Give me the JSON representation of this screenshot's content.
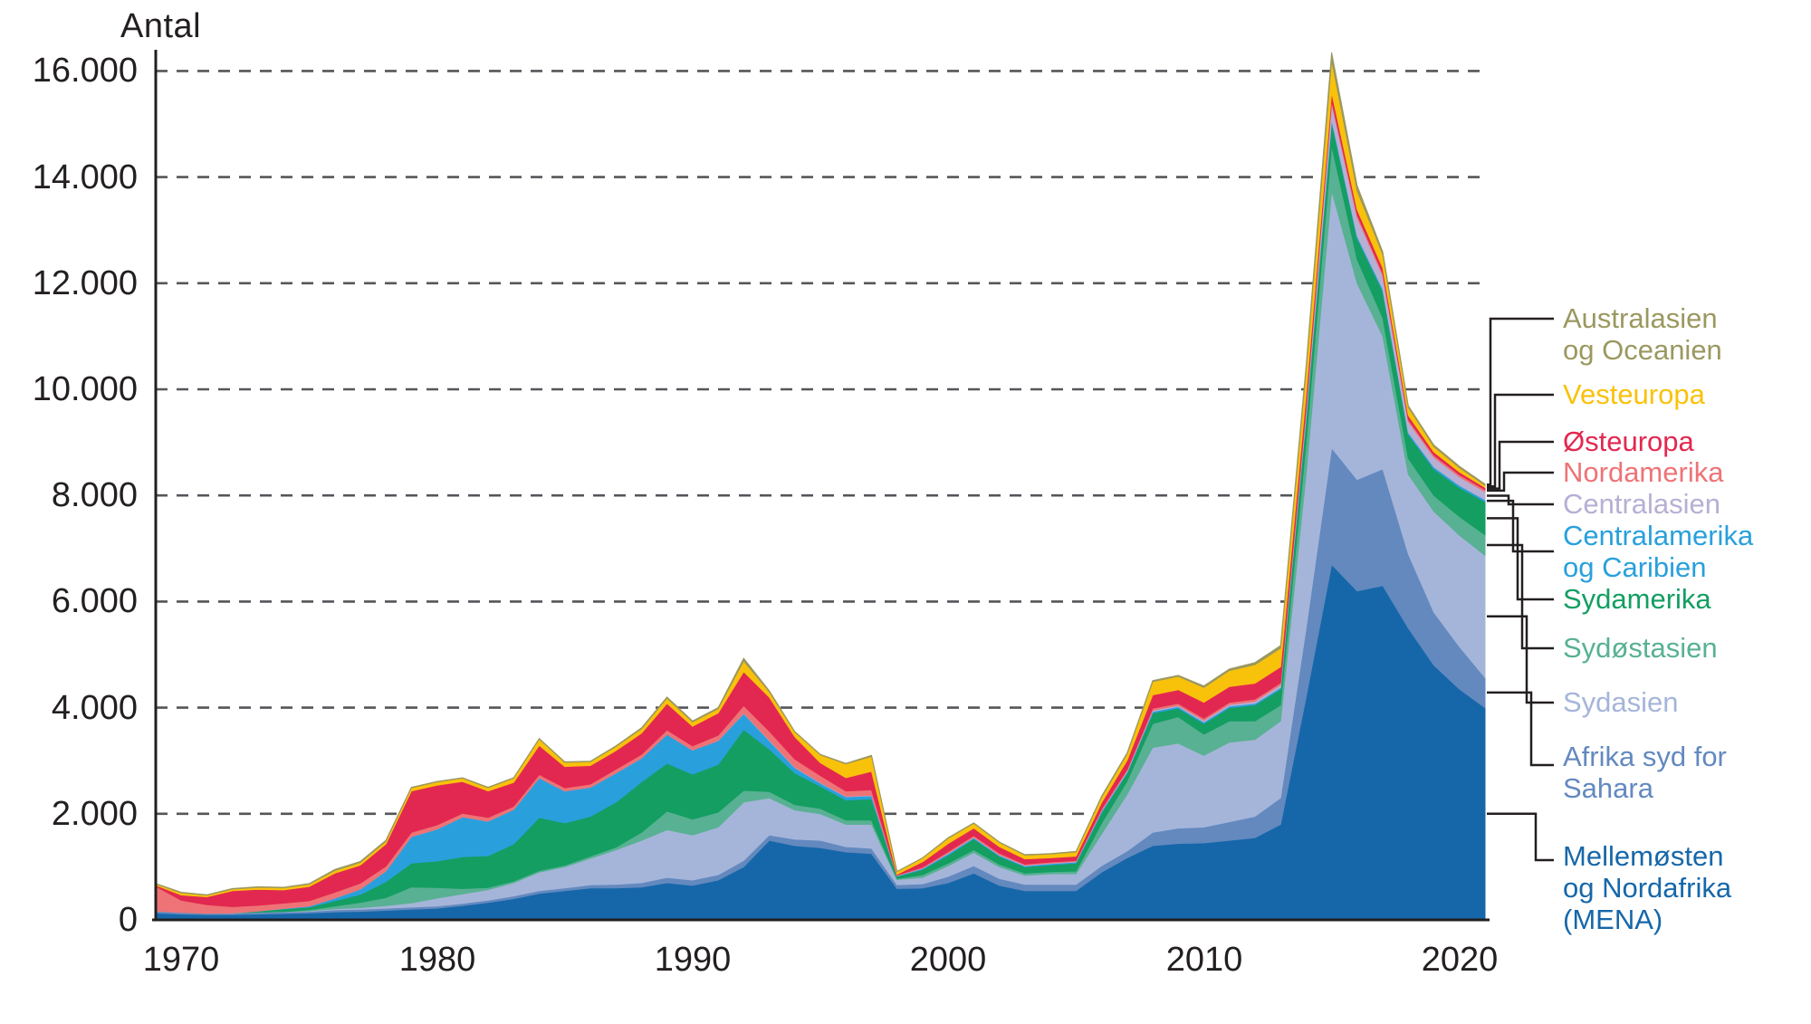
{
  "title": "Antal",
  "axes": {
    "y_title": "Antal",
    "ytick_values": [
      0,
      2000,
      4000,
      6000,
      8000,
      10000,
      12000,
      14000,
      16000
    ],
    "ytick_labels": [
      "0",
      "2.000",
      "4.000",
      "6.000",
      "8.000",
      "10.000",
      "12.000",
      "14.000",
      "16.000"
    ],
    "xtick_labels": [
      "1970",
      "1980",
      "1990",
      "2000",
      "2010",
      "2020"
    ],
    "xtick_years": [
      1970,
      1980,
      1990,
      2000,
      2010,
      2020
    ]
  },
  "chart_data": {
    "type": "area",
    "stacked": true,
    "title": "Antal",
    "xlabel": "",
    "ylabel": "Antal",
    "ylim": [
      0,
      16000
    ],
    "grid": "dashed-horizontal",
    "legend_position": "right",
    "x_range": [
      1969,
      2021
    ],
    "x": [
      1969,
      1970,
      1971,
      1972,
      1973,
      1974,
      1975,
      1976,
      1977,
      1978,
      1979,
      1980,
      1981,
      1982,
      1983,
      1984,
      1985,
      1986,
      1987,
      1988,
      1989,
      1990,
      1991,
      1992,
      1993,
      1994,
      1995,
      1996,
      1997,
      1998,
      1999,
      2000,
      2001,
      2002,
      2003,
      2004,
      2005,
      2006,
      2007,
      2008,
      2009,
      2010,
      2011,
      2012,
      2013,
      2014,
      2015,
      2016,
      2017,
      2018,
      2019,
      2020,
      2021
    ],
    "series": [
      {
        "key": "mena",
        "name": "Mellemøsten og Nordafrika (MENA)",
        "color": "#1667A9",
        "values": [
          130,
          110,
          100,
          100,
          110,
          120,
          130,
          150,
          160,
          180,
          200,
          220,
          270,
          330,
          400,
          500,
          550,
          600,
          600,
          620,
          700,
          650,
          750,
          1000,
          1500,
          1400,
          1360,
          1280,
          1250,
          590,
          600,
          700,
          880,
          650,
          550,
          550,
          550,
          900,
          1170,
          1400,
          1440,
          1450,
          1500,
          1550,
          1800,
          4200,
          6700,
          6200,
          6300,
          5500,
          4800,
          4350,
          4000
        ]
      },
      {
        "key": "afrika",
        "name": "Afrika syd for Sahara",
        "color": "#6389BF",
        "values": [
          35,
          30,
          25,
          25,
          30,
          30,
          30,
          40,
          40,
          40,
          40,
          40,
          40,
          40,
          50,
          50,
          50,
          60,
          70,
          80,
          100,
          100,
          100,
          120,
          100,
          120,
          140,
          100,
          100,
          70,
          80,
          120,
          140,
          130,
          120,
          120,
          120,
          120,
          130,
          250,
          290,
          300,
          350,
          400,
          500,
          1300,
          2200,
          2100,
          2200,
          1400,
          1000,
          800,
          570
        ]
      },
      {
        "key": "sydasien",
        "name": "Sydasien",
        "color": "#A5B5D9",
        "values": [
          0,
          0,
          0,
          5,
          5,
          5,
          10,
          20,
          30,
          50,
          80,
          150,
          180,
          200,
          250,
          350,
          400,
          500,
          650,
          800,
          900,
          850,
          900,
          1100,
          700,
          550,
          500,
          420,
          450,
          100,
          120,
          200,
          250,
          220,
          170,
          200,
          200,
          600,
          1070,
          1600,
          1600,
          1350,
          1500,
          1450,
          1450,
          2900,
          4850,
          3700,
          2500,
          1500,
          1900,
          2100,
          2300
        ]
      },
      {
        "key": "sydostasien",
        "name": "Sydøstasien",
        "color": "#58B192",
        "values": [
          0,
          0,
          0,
          0,
          0,
          0,
          20,
          50,
          100,
          150,
          300,
          200,
          100,
          40,
          30,
          30,
          30,
          40,
          50,
          150,
          350,
          300,
          280,
          220,
          120,
          100,
          100,
          80,
          80,
          20,
          50,
          50,
          50,
          50,
          40,
          40,
          50,
          200,
          250,
          450,
          500,
          400,
          400,
          350,
          300,
          600,
          850,
          450,
          350,
          300,
          300,
          350,
          390
        ]
      },
      {
        "key": "sydamerika",
        "name": "Sydamerika",
        "color": "#149E62",
        "values": [
          0,
          0,
          0,
          0,
          20,
          50,
          50,
          100,
          150,
          300,
          450,
          500,
          600,
          600,
          700,
          1000,
          800,
          750,
          850,
          950,
          900,
          850,
          900,
          1150,
          800,
          600,
          420,
          380,
          400,
          40,
          100,
          150,
          210,
          150,
          120,
          130,
          150,
          200,
          150,
          200,
          160,
          200,
          250,
          300,
          300,
          450,
          450,
          400,
          500,
          450,
          500,
          550,
          620
        ]
      },
      {
        "key": "centralamerika",
        "name": "Centralamerika og Caribien",
        "color": "#29A0DC",
        "values": [
          0,
          0,
          0,
          0,
          0,
          10,
          20,
          50,
          100,
          200,
          500,
          600,
          750,
          650,
          650,
          750,
          600,
          550,
          550,
          450,
          550,
          450,
          450,
          300,
          160,
          100,
          60,
          60,
          60,
          10,
          20,
          30,
          20,
          20,
          20,
          20,
          20,
          30,
          20,
          30,
          30,
          30,
          30,
          30,
          30,
          40,
          50,
          40,
          40,
          40,
          40,
          40,
          40
        ]
      },
      {
        "key": "centralasien",
        "name": "Centralasien",
        "color": "#B7AFD4",
        "values": [
          0,
          0,
          0,
          0,
          0,
          0,
          0,
          0,
          0,
          0,
          0,
          0,
          0,
          0,
          0,
          0,
          0,
          0,
          0,
          0,
          0,
          0,
          0,
          10,
          10,
          10,
          10,
          10,
          10,
          5,
          5,
          10,
          10,
          10,
          10,
          10,
          10,
          10,
          20,
          20,
          20,
          30,
          30,
          40,
          50,
          120,
          300,
          350,
          250,
          200,
          180,
          160,
          150
        ]
      },
      {
        "key": "nordamerika",
        "name": "Nordamerika",
        "color": "#EE7376",
        "values": [
          470,
          230,
          160,
          120,
          110,
          100,
          100,
          110,
          110,
          90,
          80,
          80,
          70,
          70,
          60,
          60,
          60,
          60,
          70,
          70,
          80,
          80,
          100,
          140,
          170,
          150,
          130,
          100,
          100,
          10,
          20,
          30,
          30,
          30,
          20,
          20,
          20,
          30,
          30,
          40,
          40,
          40,
          40,
          40,
          40,
          50,
          50,
          50,
          50,
          40,
          40,
          40,
          40
        ]
      },
      {
        "key": "osteuropa",
        "name": "Østeuropa",
        "color": "#E22850",
        "values": [
          20,
          100,
          150,
          300,
          300,
          250,
          270,
          360,
          340,
          420,
          780,
          750,
          600,
          500,
          450,
          550,
          400,
          350,
          350,
          400,
          500,
          370,
          420,
          640,
          640,
          420,
          240,
          250,
          350,
          15,
          100,
          150,
          140,
          120,
          100,
          80,
          80,
          120,
          170,
          250,
          260,
          300,
          300,
          300,
          300,
          250,
          150,
          100,
          100,
          80,
          60,
          50,
          40
        ]
      },
      {
        "key": "vesteuropa",
        "name": "Vesteuropa",
        "color": "#F9C20A",
        "values": [
          20,
          40,
          30,
          30,
          40,
          40,
          40,
          50,
          50,
          50,
          60,
          60,
          60,
          60,
          80,
          120,
          80,
          70,
          80,
          80,
          100,
          80,
          80,
          200,
          100,
          90,
          150,
          260,
          280,
          50,
          70,
          100,
          90,
          80,
          70,
          70,
          80,
          100,
          120,
          250,
          250,
          280,
          300,
          350,
          350,
          450,
          600,
          350,
          250,
          150,
          100,
          80,
          40
        ]
      },
      {
        "key": "australasien",
        "name": "Australasien og Oceanien",
        "color": "#9B9860",
        "values": [
          10,
          10,
          10,
          10,
          10,
          10,
          15,
          20,
          20,
          20,
          10,
          10,
          10,
          10,
          10,
          10,
          10,
          10,
          10,
          20,
          20,
          20,
          20,
          50,
          20,
          10,
          10,
          10,
          20,
          5,
          5,
          10,
          10,
          10,
          10,
          10,
          10,
          20,
          20,
          20,
          20,
          30,
          30,
          40,
          50,
          80,
          150,
          100,
          50,
          30,
          30,
          30,
          25
        ]
      }
    ]
  },
  "legend": {
    "items": [
      {
        "series": "australasien",
        "label": "Australasien\nog Oceanien",
        "color": "#9B9860"
      },
      {
        "series": "vesteuropa",
        "label": "Vesteuropa",
        "color": "#F9C20A"
      },
      {
        "series": "osteuropa",
        "label": "Østeuropa",
        "color": "#E22850"
      },
      {
        "series": "nordamerika",
        "label": "Nordamerika",
        "color": "#EE7376"
      },
      {
        "series": "centralasien",
        "label": "Centralasien",
        "color": "#B7AFD4"
      },
      {
        "series": "centralamerika",
        "label": "Centralamerika\nog Caribien",
        "color": "#29A0DC"
      },
      {
        "series": "sydamerika",
        "label": "Sydamerika",
        "color": "#149E62"
      },
      {
        "series": "sydostasien",
        "label": "Sydøstasien",
        "color": "#58B192"
      },
      {
        "series": "sydasien",
        "label": "Sydasien",
        "color": "#A5B5D9"
      },
      {
        "series": "afrika",
        "label": "Afrika syd for\nSahara",
        "color": "#6389BF"
      },
      {
        "series": "mena",
        "label": "Mellemøsten\nog Nordafrika\n(MENA)",
        "color": "#1667A9"
      }
    ]
  },
  "style": {
    "axis_color": "#231F20",
    "gridline_color": "#55565A",
    "background": "#FFFFFF"
  }
}
